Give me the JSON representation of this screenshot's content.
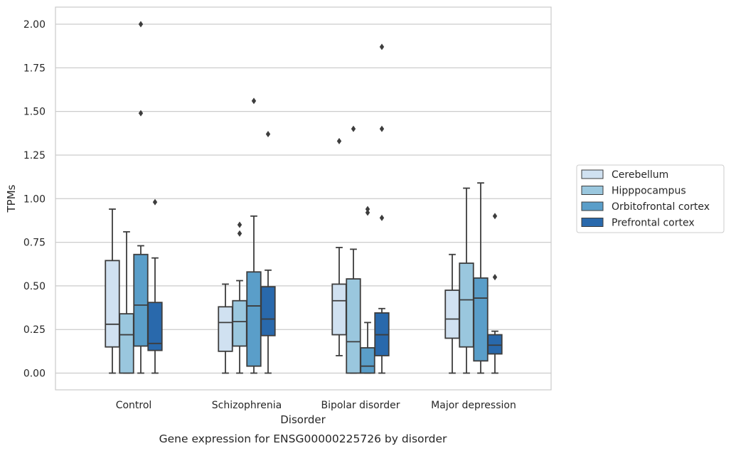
{
  "chart_data": {
    "type": "boxplot",
    "title": "",
    "caption": "Gene expression for ENSG00000225726 by disorder",
    "xlabel": "Disorder",
    "ylabel": "TPMs",
    "ylim": [
      -0.1,
      2.1
    ],
    "yticks": [
      0.0,
      0.25,
      0.5,
      0.75,
      1.0,
      1.25,
      1.5,
      1.75,
      2.0
    ],
    "ytick_labels": [
      "0.00",
      "0.25",
      "0.50",
      "0.75",
      "1.00",
      "1.25",
      "1.50",
      "1.75",
      "2.00"
    ],
    "grid": "horizontal",
    "legend_position": "right",
    "categories": [
      "Control",
      "Schizophrenia",
      "Bipolar disorder",
      "Major depression"
    ],
    "series": [
      {
        "name": "Cerebellum",
        "color": "#d0e1f1",
        "boxes": [
          {
            "whisker_low": 0.0,
            "q1": 0.15,
            "median": 0.28,
            "q3": 0.645,
            "whisker_high": 0.94,
            "outliers": []
          },
          {
            "whisker_low": 0.0,
            "q1": 0.125,
            "median": 0.29,
            "q3": 0.38,
            "whisker_high": 0.51,
            "outliers": []
          },
          {
            "whisker_low": 0.1,
            "q1": 0.22,
            "median": 0.415,
            "q3": 0.51,
            "whisker_high": 0.72,
            "outliers": [
              1.33
            ]
          },
          {
            "whisker_low": 0.0,
            "q1": 0.2,
            "median": 0.31,
            "q3": 0.475,
            "whisker_high": 0.68,
            "outliers": []
          }
        ]
      },
      {
        "name": "Hipppocampus",
        "color": "#9ac7de",
        "boxes": [
          {
            "whisker_low": 0.0,
            "q1": 0.0,
            "median": 0.22,
            "q3": 0.34,
            "whisker_high": 0.81,
            "outliers": []
          },
          {
            "whisker_low": 0.0,
            "q1": 0.155,
            "median": 0.295,
            "q3": 0.415,
            "whisker_high": 0.53,
            "outliers": [
              0.8,
              0.85
            ]
          },
          {
            "whisker_low": 0.0,
            "q1": 0.0,
            "median": 0.18,
            "q3": 0.54,
            "whisker_high": 0.71,
            "outliers": [
              1.4
            ]
          },
          {
            "whisker_low": 0.0,
            "q1": 0.15,
            "median": 0.42,
            "q3": 0.63,
            "whisker_high": 1.06,
            "outliers": []
          }
        ]
      },
      {
        "name": "Orbitofrontal cortex",
        "color": "#5a9ec9",
        "boxes": [
          {
            "whisker_low": 0.0,
            "q1": 0.155,
            "median": 0.39,
            "q3": 0.68,
            "whisker_high": 0.73,
            "outliers": [
              1.49,
              2.0
            ]
          },
          {
            "whisker_low": 0.0,
            "q1": 0.04,
            "median": 0.385,
            "q3": 0.58,
            "whisker_high": 0.9,
            "outliers": [
              1.56
            ]
          },
          {
            "whisker_low": 0.0,
            "q1": 0.0,
            "median": 0.04,
            "q3": 0.145,
            "whisker_high": 0.29,
            "outliers": [
              0.92,
              0.94
            ]
          },
          {
            "whisker_low": 0.0,
            "q1": 0.07,
            "median": 0.43,
            "q3": 0.545,
            "whisker_high": 1.09,
            "outliers": []
          }
        ]
      },
      {
        "name": "Prefrontal cortex",
        "color": "#2969ac",
        "boxes": [
          {
            "whisker_low": 0.0,
            "q1": 0.13,
            "median": 0.17,
            "q3": 0.405,
            "whisker_high": 0.66,
            "outliers": [
              0.98
            ]
          },
          {
            "whisker_low": 0.0,
            "q1": 0.215,
            "median": 0.31,
            "q3": 0.495,
            "whisker_high": 0.59,
            "outliers": [
              1.37
            ]
          },
          {
            "whisker_low": 0.0,
            "q1": 0.1,
            "median": 0.22,
            "q3": 0.345,
            "whisker_high": 0.37,
            "outliers": [
              0.89,
              1.4,
              1.87
            ]
          },
          {
            "whisker_low": 0.0,
            "q1": 0.11,
            "median": 0.16,
            "q3": 0.22,
            "whisker_high": 0.24,
            "outliers": [
              0.55,
              0.9
            ]
          }
        ]
      }
    ]
  }
}
